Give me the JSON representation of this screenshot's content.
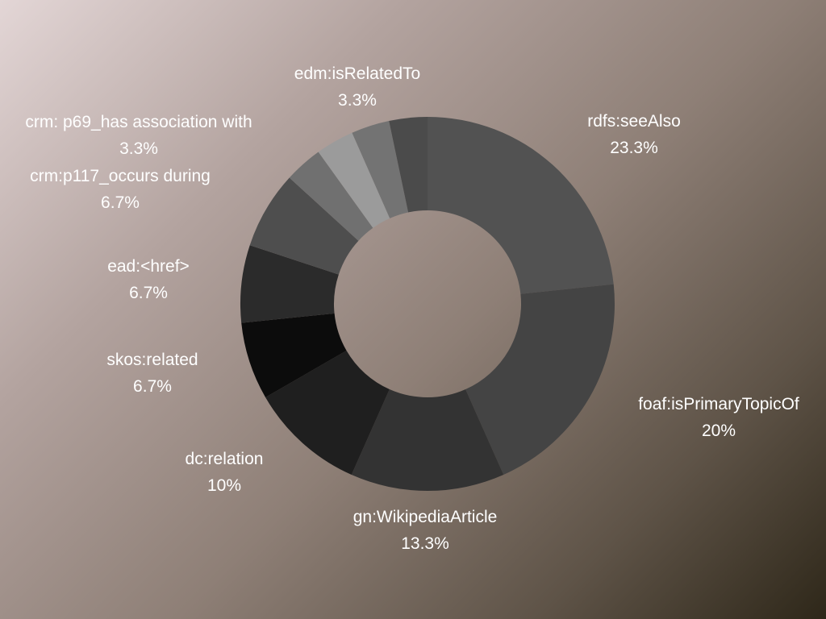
{
  "chart_data": {
    "type": "pie",
    "donut": true,
    "slices": [
      {
        "label": "rdfs:seeAlso",
        "value": 23.3,
        "display": "23.3%",
        "color": "#525252"
      },
      {
        "label": "foaf:isPrimaryTopicOf",
        "value": 20,
        "display": "20%",
        "color": "#444444"
      },
      {
        "label": "gn:WikipediaArticle",
        "value": 13.3,
        "display": "13.3%",
        "color": "#333333"
      },
      {
        "label": "dc:relation",
        "value": 10,
        "display": "10%",
        "color": "#1f1f1f"
      },
      {
        "label": "skos:related",
        "value": 6.7,
        "display": "6.7%",
        "color": "#0c0c0c"
      },
      {
        "label": "ead:<href>",
        "value": 6.7,
        "display": "6.7%",
        "color": "#2b2b2b"
      },
      {
        "label": "crm:p117_occurs during",
        "value": 6.7,
        "display": "6.7%",
        "color": "#4e4e4e"
      },
      {
        "label": "crm: p69_has association with",
        "value": 3.3,
        "display": "3.3%",
        "color": "#707070"
      },
      {
        "label": "",
        "value": 3.3,
        "display": "",
        "color": "#9b9b9b"
      },
      {
        "label": "",
        "value": 3.3,
        "display": "",
        "color": "#737373"
      },
      {
        "label": "edm:isRelatedTo",
        "value": 3.3,
        "display": "3.3%",
        "color": "#4b4b4b"
      }
    ]
  }
}
